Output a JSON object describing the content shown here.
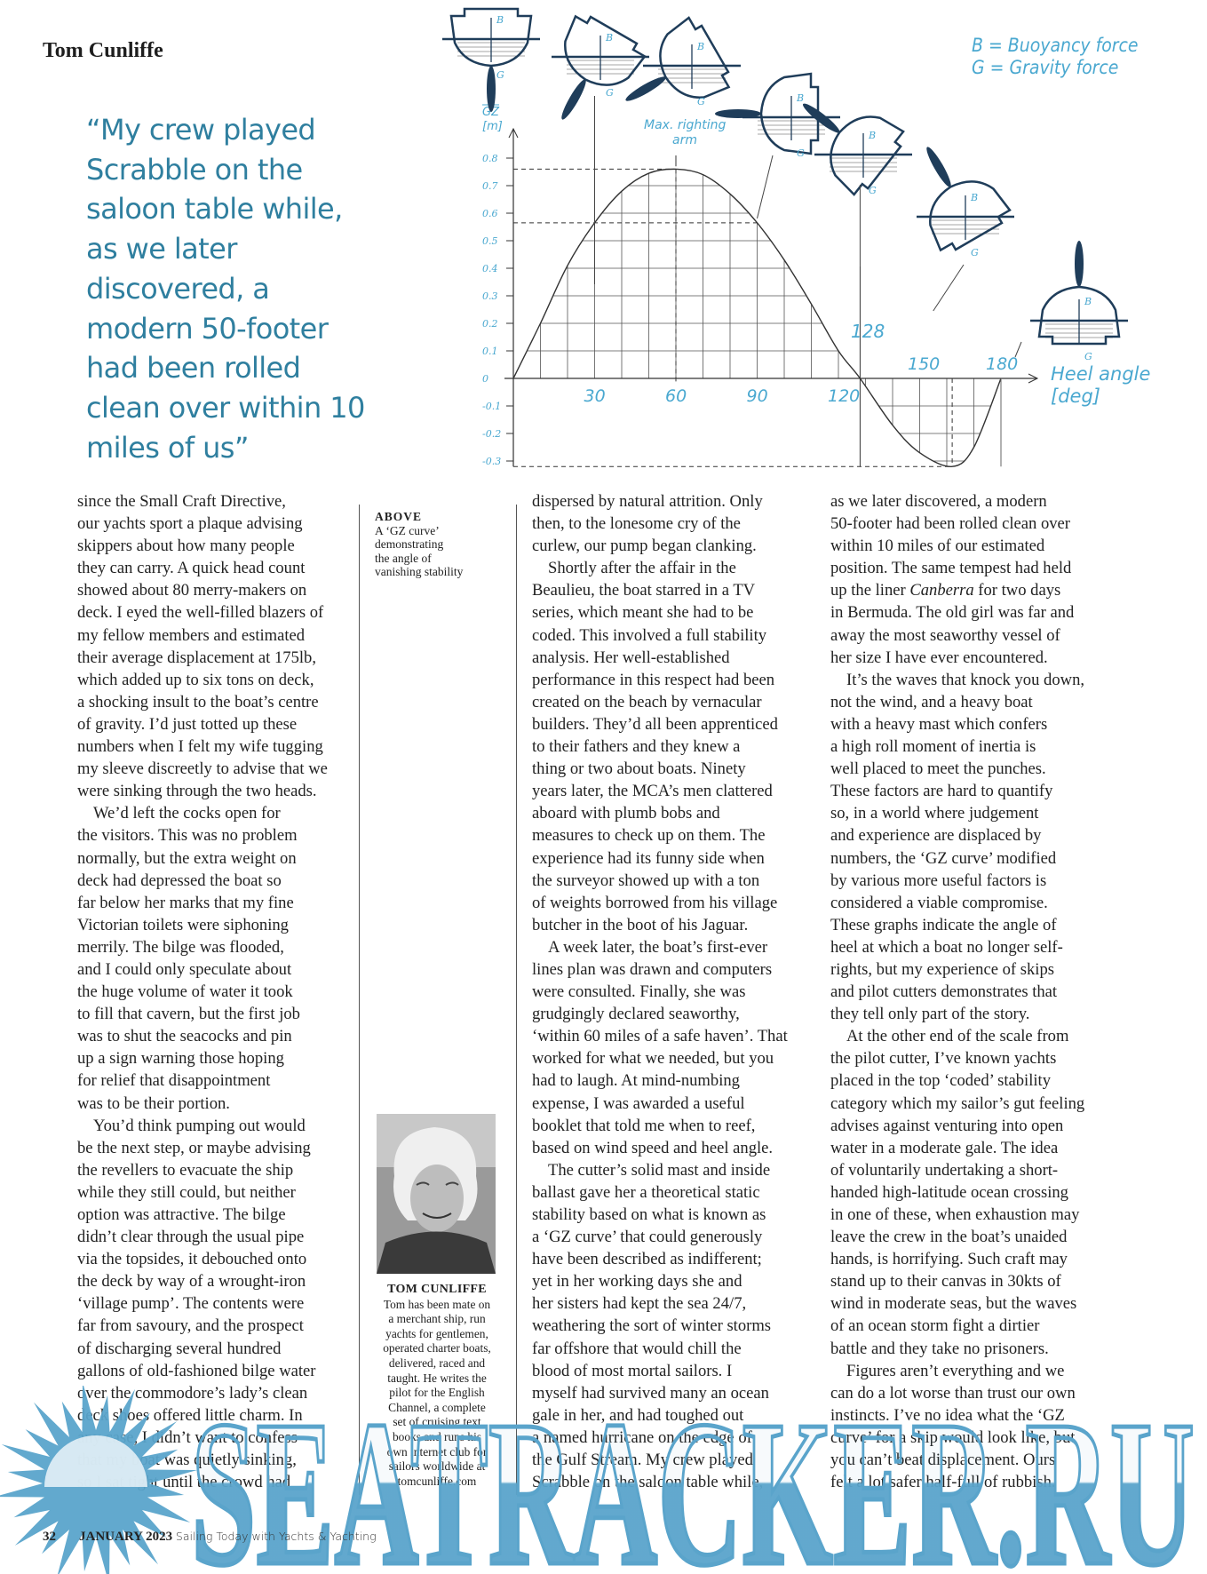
{
  "header": {
    "author": "Tom Cunliffe"
  },
  "pull_quote": {
    "lines": [
      "“My crew played",
      "Scrabble on the",
      "saloon table while,",
      "as we later",
      "discovered, a",
      "modern 50-footer",
      "had been rolled",
      "clean over within 10",
      "miles of us”"
    ]
  },
  "caption": {
    "heading": "ABOVE",
    "lines": [
      "A ‘GZ curve’",
      "demonstrating",
      "the angle of",
      "vanishing stability"
    ]
  },
  "bio": {
    "name": "TOM CUNLIFFE",
    "lines": [
      "Tom has been mate on",
      "a merchant ship, run",
      "yachts for gentlemen,",
      "operated charter boats,",
      "delivered, raced and",
      "taught. He writes the",
      "pilot for the English",
      "Channel, a complete",
      "set of cruising text",
      "books and runs his",
      "own internet club for",
      "sailors worldwide at",
      "tomcunliffe.com"
    ],
    "photo": "portrait-photo"
  },
  "footer": {
    "page": "32",
    "issue": "JANUARY 2023",
    "magazine": "Sailing Today with Yachts & Yachting"
  },
  "watermark": {
    "text": "SEATRACKER.RU",
    "color": "#5aa4cb"
  },
  "colors": {
    "accent": "#2f7f9f",
    "chart_label": "#4aa8d0",
    "chart_ink": "#1f3d5a"
  },
  "columns": [
    [
      [
        "since the Small Craft Directive,",
        "our yachts sport a plaque advising",
        "skippers about how many people",
        "they can carry. A quick head count",
        "showed about 80 merry-makers on",
        "deck. I eyed the well-filled blazers of",
        "my fellow members and estimated",
        "their average displacement at 175lb,",
        "which added up to six tons on deck,",
        "a shocking insult to the boat’s centre",
        "of gravity. I’d just totted up these",
        "numbers when I felt my wife tugging",
        "my sleeve discreetly to advise that we",
        "were sinking through the two heads."
      ],
      [
        "We’d left the cocks open for",
        "the visitors. This was no problem",
        "normally, but the extra weight on",
        "deck had depressed the boat so",
        "far below her marks that my fine",
        "Victorian toilets were siphoning",
        "merrily. The bilge was flooded,",
        "and I could only speculate about",
        "the huge volume of water it took",
        "to fill that cavern, but the first job",
        "was to shut the seacocks and pin",
        "up a sign warning those hoping",
        "for relief that disappointment",
        "was to be their portion."
      ],
      [
        "You’d think pumping out would",
        "be the next step, or maybe advising",
        "the revellers to evacuate the ship",
        "while they still could, but neither",
        "option was attractive. The bilge",
        "didn’t clear through the usual pipe",
        "via the topsides, it debouched onto",
        "the deck by way of a wrought-iron",
        "‘village pump’. The contents were",
        "far from savoury, and the prospect",
        "of discharging several hundred",
        "gallons of old-fashioned bilge water",
        "over the commodore’s lady’s clean",
        "deck shoes offered little charm. In",
        "any case, I didn’t want to confess",
        "that my boat was quietly sinking,",
        "so I sat tight until the crowd had"
      ]
    ],
    [
      [
        "dispersed by natural attrition. Only",
        "then, to the lonesome cry of the",
        "curlew, our pump began clanking."
      ],
      [
        "Shortly after the affair in the",
        "Beaulieu, the boat starred in a TV",
        "series, which meant she had to be",
        "coded. This involved a full stability",
        "analysis. Her well-established",
        "performance in this respect had been",
        "created on the beach by vernacular",
        "builders. They’d all been apprenticed",
        "to their fathers and they knew a",
        "thing or two about boats. Ninety",
        "years later, the MCA’s men clattered",
        "aboard with plumb bobs and",
        "measures to check up on them. The",
        "experience had its funny side when",
        "the surveyor showed up with a ton",
        "of weights borrowed from his village",
        "butcher in the boot of his Jaguar."
      ],
      [
        "A week later, the boat’s first-ever",
        "lines plan was drawn and computers",
        "were consulted. Finally, she was",
        "grudgingly declared seaworthy,",
        "‘within 60 miles of a safe haven’. That",
        "worked for what we needed, but you",
        "had to laugh. At mind-numbing",
        "expense, I was awarded a useful",
        "booklet that told me when to reef,",
        "based on wind speed and heel angle."
      ],
      [
        "The cutter’s solid mast and inside",
        "ballast gave her a theoretical static",
        "stability based on what is known as",
        "a ‘GZ curve’ that could generously",
        "have been described as indifferent;",
        "yet in her working days she and",
        "her sisters had kept the sea 24/7,",
        "weathering the sort of winter storms",
        "far offshore that would chill the",
        "blood of most mortal sailors. I",
        "myself had survived many an ocean",
        "gale in her, and had toughed out",
        "a named hurricane on the edge of",
        "the Gulf Stream. My crew played",
        "Scrabble on the saloon table while,"
      ]
    ],
    [
      [
        "as we later discovered, a modern",
        "50-footer had been rolled clean over",
        "within 10 miles of our estimated",
        "position. The same tempest had held",
        [
          {
            "text": "up the liner "
          },
          {
            "text": "Canberra",
            "italic": true
          },
          {
            "text": " for two days"
          }
        ],
        "in Bermuda. The old girl was far and",
        "away the most seaworthy vessel of",
        "her size I have ever encountered."
      ],
      [
        "It’s the waves that knock you down,",
        "not the wind, and a heavy boat",
        "with a heavy mast which confers",
        "a high roll moment of inertia is",
        "well placed to meet the punches.",
        "These factors are hard to quantify",
        "so, in a world where judgement",
        "and experience are displaced by",
        "numbers, the ‘GZ curve’ modified",
        "by various more useful factors is",
        "considered a viable compromise.",
        "These graphs indicate the angle of",
        "heel at which a boat no longer self-",
        "rights, but my experience of skips",
        "and pilot cutters demonstrates that",
        "they tell only part of the story."
      ],
      [
        "At the other end of the scale from",
        "the pilot cutter, I’ve known yachts",
        "placed in the top ‘coded’  stability",
        "category which my sailor’s gut feeling",
        "advises against venturing into open",
        "water in a moderate gale. The idea",
        "of voluntarily undertaking a short-",
        "handed high-latitude ocean crossing",
        "in one of these, when exhaustion may",
        "leave the crew in the boat’s unaided",
        "hands, is horrifying. Such craft may",
        "stand up to their canvas in 30kts of",
        "wind in moderate seas, but the waves",
        "of an ocean storm fight a dirtier",
        "battle and they take no prisoners."
      ],
      [
        "Figures aren’t everything and we",
        "can do a lot worse than trust our own",
        "instincts. I’ve no idea what the ‘GZ",
        "curve’ for a skip would look like, but",
        "you can’t beat displacement. Ours",
        "felt a lot safer half-full of rubbish."
      ]
    ]
  ],
  "chart_data": {
    "type": "line",
    "ylabel": "GZ [m]",
    "xlabel": "Heel angle [deg]",
    "x": [
      0,
      10,
      20,
      30,
      40,
      50,
      60,
      70,
      80,
      90,
      100,
      110,
      120,
      128,
      140,
      150,
      162,
      170,
      180
    ],
    "y": [
      0,
      0.2,
      0.41,
      0.565,
      0.68,
      0.745,
      0.76,
      0.74,
      0.67,
      0.565,
      0.43,
      0.27,
      0.1,
      0,
      -0.17,
      -0.27,
      -0.32,
      -0.25,
      0
    ],
    "xlim": [
      0,
      180
    ],
    "ylim": [
      -0.3,
      0.8
    ],
    "xticks": [
      "30",
      "60",
      "90",
      "120"
    ],
    "yticks": [
      "0.8",
      "0.7",
      "0.6",
      "0.5",
      "0.4",
      "0.3",
      "0.2",
      "0.1",
      "0",
      "-0.1",
      "-0.2",
      "-0.3"
    ],
    "annotations": {
      "max_arm": "Max. righting arm",
      "vanishing": "128",
      "a150": "150",
      "a180": "180"
    },
    "legend": [
      "B = Buoyancy force",
      "G = Gravity force"
    ],
    "legend_placement": "top-right",
    "force_labels": {
      "b": "B",
      "g": "G"
    },
    "dashed_levels": [
      0.76,
      0.565,
      -0.32
    ],
    "boat_heel_angles": [
      0,
      30,
      60,
      90,
      128,
      150,
      180
    ],
    "grid": "inside curve"
  }
}
